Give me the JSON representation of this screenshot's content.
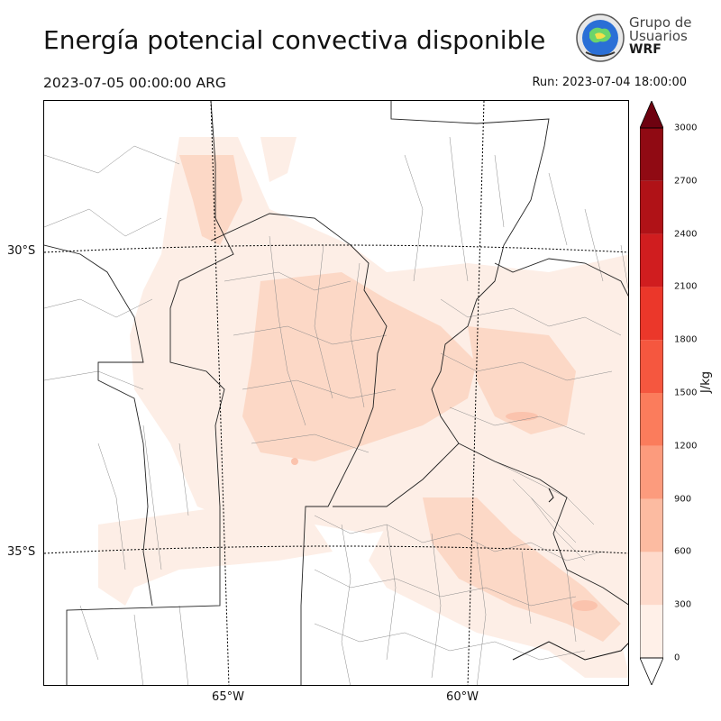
{
  "header": {
    "title": "Energía potencial convectiva disponible",
    "valid_time": "2023-07-05 00:00:00 ARG",
    "run_time": "Run: 2023-07-04 18:00:00"
  },
  "logo": {
    "line1": "Grupo de",
    "line2": "Usuarios",
    "line3": "WRF"
  },
  "map": {
    "lat_labels": [
      "30°S",
      "35°S"
    ],
    "lon_labels": [
      "65°W",
      "60°W"
    ]
  },
  "colorbar": {
    "unit": "J/kg",
    "ticks": [
      "0",
      "300",
      "600",
      "900",
      "1200",
      "1500",
      "1800",
      "2100",
      "2400",
      "2700",
      "3000"
    ],
    "colors": [
      "#fff0e8",
      "#fedacb",
      "#fcbba1",
      "#fc9b7d",
      "#fb7c5c",
      "#f5573f",
      "#eb372a",
      "#d01d1f",
      "#b01217",
      "#900a13",
      "#6e0210"
    ]
  }
}
